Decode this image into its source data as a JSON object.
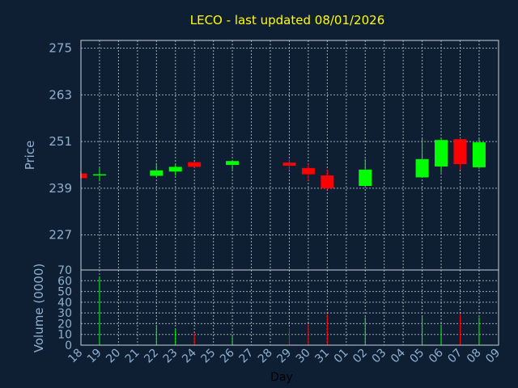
{
  "chart_data": {
    "type": "candlestick",
    "title": "LECO - last updated 08/01/2026",
    "xlabel": "Day",
    "colors": {
      "background": "#0f1f33",
      "title": "#ffff00",
      "axis_text": "#8fb0d0",
      "up": "#00ff00",
      "down": "#ff0000",
      "grid": "#d0d8e0"
    },
    "x_ticks": [
      "18",
      "19",
      "20",
      "21",
      "22",
      "23",
      "24",
      "25",
      "26",
      "27",
      "28",
      "29",
      "30",
      "31",
      "01",
      "02",
      "03",
      "04",
      "05",
      "06",
      "07",
      "08",
      "09"
    ],
    "price_panel": {
      "ylabel": "Price",
      "ylim": [
        218,
        277
      ],
      "yticks": [
        227,
        239,
        251,
        263,
        275
      ]
    },
    "volume_panel": {
      "ylabel": "Volume (0000)",
      "ylim": [
        0,
        70
      ],
      "yticks": [
        0,
        10,
        20,
        30,
        40,
        50,
        60,
        70
      ]
    },
    "candles": [
      {
        "day": "18",
        "open": 242.8,
        "high": 243.3,
        "low": 241.5,
        "close": 241.6,
        "volume": 0
      },
      {
        "day": "19",
        "open": 242.3,
        "high": 244.2,
        "low": 240.8,
        "close": 242.6,
        "volume": 64
      },
      {
        "day": "22",
        "open": 242.2,
        "high": 245.5,
        "low": 241.9,
        "close": 243.6,
        "volume": 18
      },
      {
        "day": "23",
        "open": 243.3,
        "high": 245.2,
        "low": 242.2,
        "close": 244.5,
        "volume": 15
      },
      {
        "day": "24",
        "open": 245.7,
        "high": 245.8,
        "low": 244.3,
        "close": 244.5,
        "volume": 11
      },
      {
        "day": "26",
        "open": 245.0,
        "high": 246.0,
        "low": 243.8,
        "close": 246.0,
        "volume": 9
      },
      {
        "day": "29",
        "open": 245.6,
        "high": 246.5,
        "low": 243.6,
        "close": 244.8,
        "volume": 16
      },
      {
        "day": "30",
        "open": 244.2,
        "high": 245.3,
        "low": 241.0,
        "close": 242.6,
        "volume": 19
      },
      {
        "day": "31",
        "open": 242.3,
        "high": 243.8,
        "low": 238.7,
        "close": 239.0,
        "volume": 29
      },
      {
        "day": "02",
        "open": 239.6,
        "high": 246.5,
        "low": 239.6,
        "close": 243.8,
        "volume": 26
      },
      {
        "day": "05",
        "open": 241.8,
        "high": 252.0,
        "low": 241.8,
        "close": 246.5,
        "volume": 27
      },
      {
        "day": "06",
        "open": 244.6,
        "high": 251.8,
        "low": 243.0,
        "close": 251.4,
        "volume": 19
      },
      {
        "day": "07",
        "open": 251.6,
        "high": 251.9,
        "low": 243.8,
        "close": 245.2,
        "volume": 29
      },
      {
        "day": "08",
        "open": 244.4,
        "high": 251.7,
        "low": 244.0,
        "close": 250.8,
        "volume": 26
      }
    ]
  }
}
